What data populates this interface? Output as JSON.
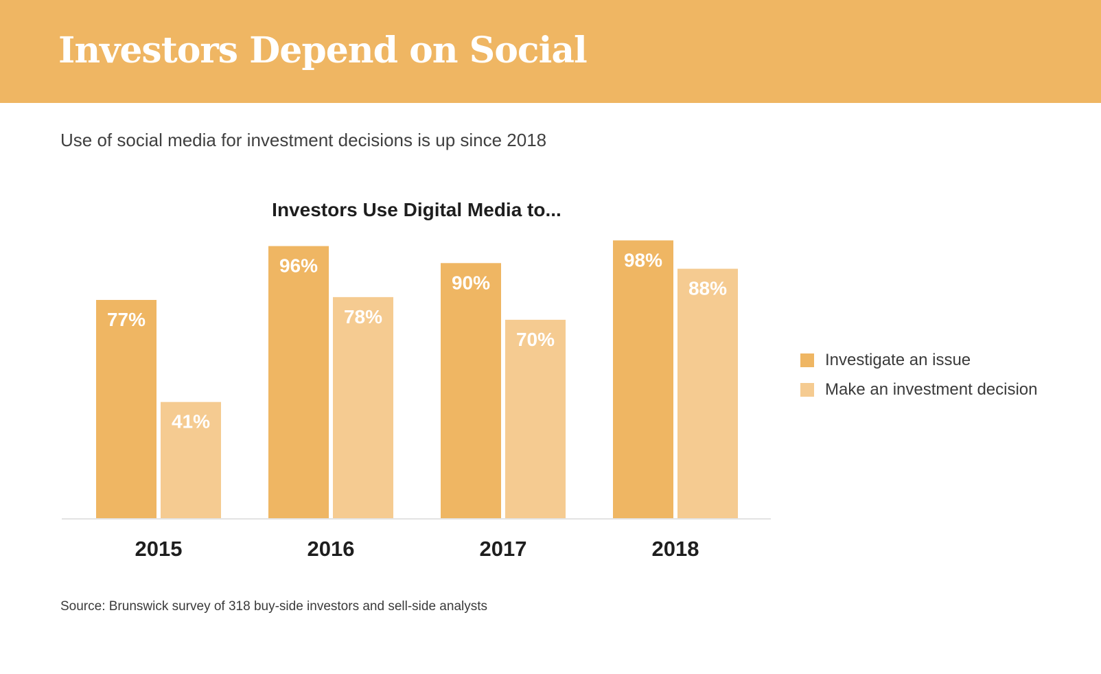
{
  "header": {
    "title": "Investors Depend on Social"
  },
  "subtitle": "Use of social media for investment decisions is up since 2018",
  "source": "Source: Brunswick survey of 318 buy-side investors and sell-side analysts",
  "colors": {
    "header_band": "#efb663",
    "series_investigate": "#efb663",
    "series_decision": "#f5cb91",
    "baseline": "#e3e3e3"
  },
  "chart_data": {
    "type": "bar",
    "title": "Investors Use Digital Media to...",
    "categories": [
      "2015",
      "2016",
      "2017",
      "2018"
    ],
    "series": [
      {
        "name": "Investigate an issue",
        "values": [
          77,
          96,
          90,
          98
        ],
        "labels": [
          "77%",
          "96%",
          "90%",
          "98%"
        ],
        "color": "#efb663"
      },
      {
        "name": "Make an investment decision",
        "values": [
          41,
          78,
          70,
          88
        ],
        "labels": [
          "41%",
          "78%",
          "70%",
          "88%"
        ],
        "color": "#f5cb91"
      }
    ],
    "unit": "%",
    "ylim": [
      0,
      100
    ],
    "grid": false,
    "legend_position": "right"
  }
}
